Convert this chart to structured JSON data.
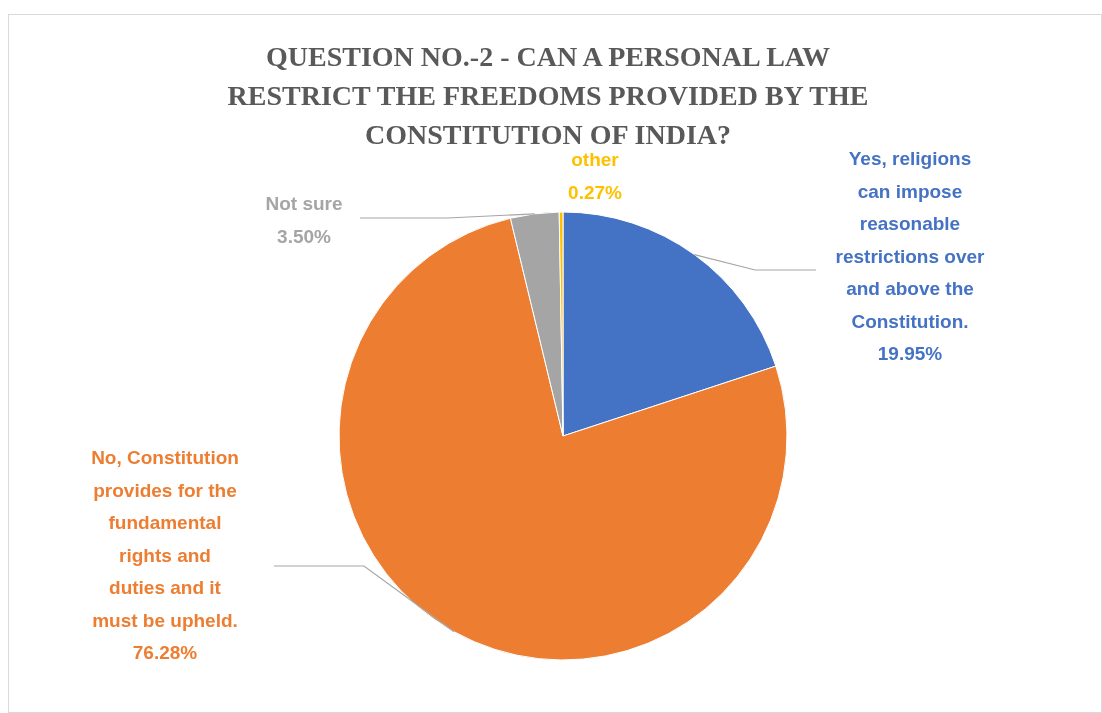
{
  "chart_data": {
    "type": "pie",
    "title": "QUESTION NO.-2 - CAN A PERSONAL LAW RESTRICT THE FREEDOMS PROVIDED BY THE CONSTITUTION OF INDIA?",
    "categories": [
      "Yes, religions can impose reasonable restrictions over and above the Constitution.",
      "No, Constitution provides for the fundamental rights and duties and it must be upheld.",
      "Not sure",
      "other"
    ],
    "values": [
      19.95,
      76.28,
      3.5,
      0.27
    ],
    "colors": [
      "#4472c4",
      "#ed7d31",
      "#a5a5a5",
      "#ffc000"
    ],
    "value_labels": [
      "19.95%",
      "76.28%",
      "3.50%",
      "0.27%"
    ]
  }
}
